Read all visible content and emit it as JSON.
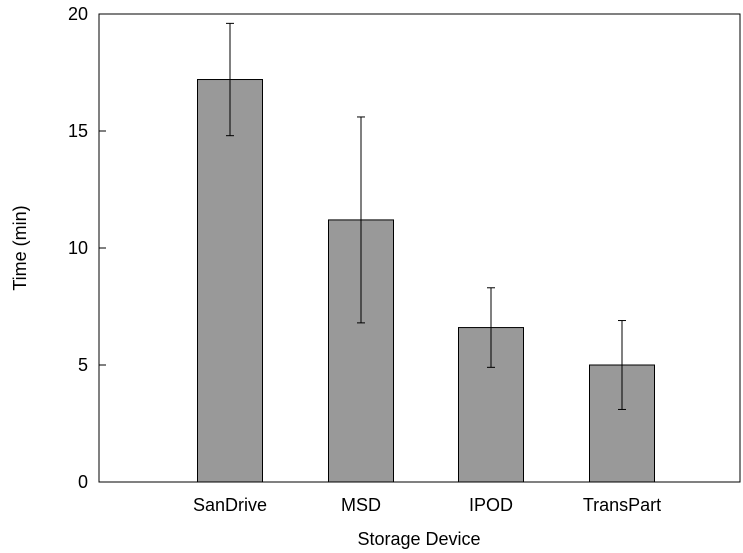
{
  "chart_data": {
    "type": "bar",
    "title": "",
    "xlabel": "Storage Device",
    "ylabel": "Time (min)",
    "categories": [
      "SanDrive",
      "MSD",
      "IPOD",
      "TransPart"
    ],
    "values": [
      17.2,
      11.2,
      6.6,
      5.0
    ],
    "error_low": [
      14.8,
      6.8,
      4.9,
      3.1
    ],
    "error_high": [
      19.6,
      15.6,
      8.3,
      6.9
    ],
    "ylim": [
      0,
      20
    ],
    "yticks": [
      0,
      5,
      10,
      15,
      20
    ],
    "ytick_labels": [
      "0",
      "5",
      "10",
      "15",
      "20"
    ],
    "grid": false,
    "bar_color": "#999999",
    "edge_color": "#000000"
  }
}
